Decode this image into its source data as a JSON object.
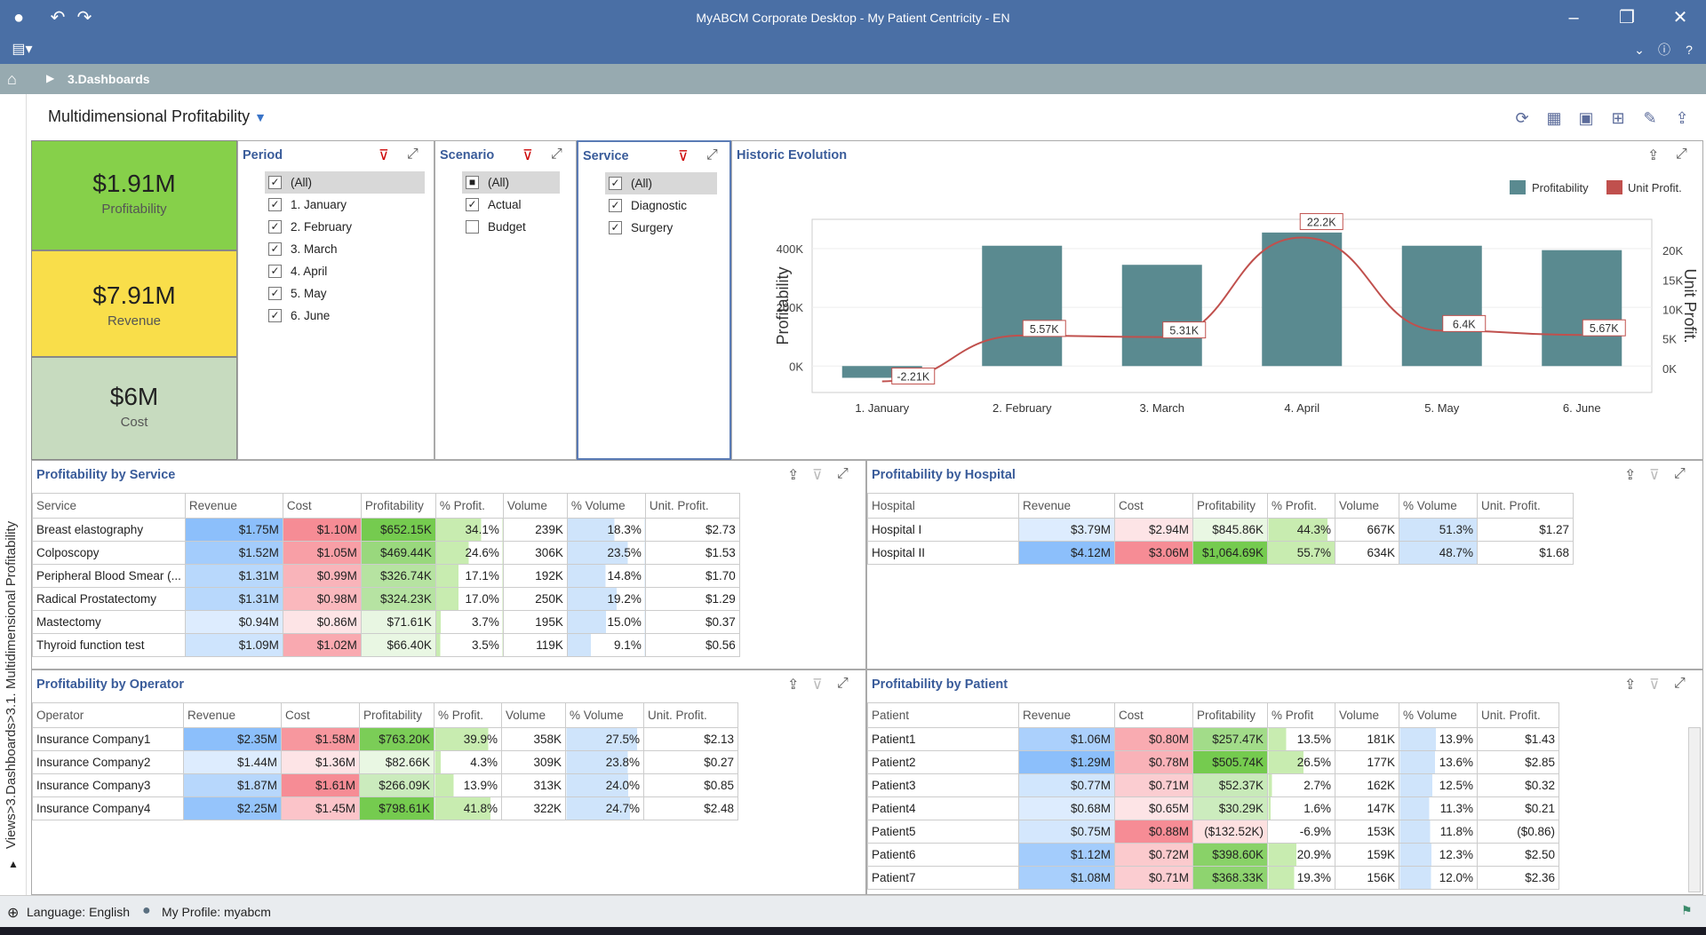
{
  "app": {
    "title": "MyABCM Corporate Desktop - My Patient Centricity - EN"
  },
  "breadcrumb": {
    "item": "3.Dashboards"
  },
  "sidebar": {
    "path": "Views>3.Dashboards>3.1. Multidimensional Profitability"
  },
  "dashboard": {
    "title": "Multidimensional Profitability"
  },
  "cards": [
    {
      "value": "$1.91M",
      "label": "Profitability",
      "color": "#86d04a"
    },
    {
      "value": "$7.91M",
      "label": "Revenue",
      "color": "#f9de4a"
    },
    {
      "value": "$6M",
      "label": "Cost",
      "color": "#c7dbbf"
    }
  ],
  "filters": {
    "period": {
      "title": "Period",
      "items": [
        {
          "label": "(All)",
          "checked": true
        },
        {
          "label": "1. January",
          "checked": true
        },
        {
          "label": "2. February",
          "checked": true
        },
        {
          "label": "3. March",
          "checked": true
        },
        {
          "label": "4. April",
          "checked": true
        },
        {
          "label": "5. May",
          "checked": true
        },
        {
          "label": "6. June",
          "checked": true
        }
      ]
    },
    "scenario": {
      "title": "Scenario",
      "items": [
        {
          "label": "(All)",
          "checked": "partial"
        },
        {
          "label": "Actual",
          "checked": true
        },
        {
          "label": "Budget",
          "checked": false
        }
      ]
    },
    "service": {
      "title": "Service",
      "items": [
        {
          "label": "(All)",
          "checked": true
        },
        {
          "label": "Diagnostic",
          "checked": true
        },
        {
          "label": "Surgery",
          "checked": true
        }
      ]
    }
  },
  "chart_data": {
    "type": "bar",
    "title": "Historic Evolution",
    "categories": [
      "1. January",
      "2. February",
      "3. March",
      "4. April",
      "5. May",
      "6. June"
    ],
    "series": [
      {
        "name": "Profitability",
        "type": "bar",
        "axis": "left",
        "color": "#5a8a90",
        "values": [
          -40000,
          410000,
          345000,
          455000,
          410000,
          395000
        ]
      },
      {
        "name": "Unit Profit.",
        "type": "line",
        "axis": "right",
        "color": "#c0504d",
        "values": [
          -2210,
          5570,
          5310,
          22200,
          6400,
          5670
        ],
        "labels": [
          "-2.21K",
          "5.57K",
          "5.31K",
          "22.2K",
          "6.4K",
          "5.67K"
        ]
      }
    ],
    "ylabel": "Profitability",
    "y2label": "Unit Profit.",
    "yticks": [
      "400K",
      "200K",
      "0K"
    ],
    "y2ticks": [
      "20K",
      "15K",
      "10K",
      "5K",
      "0K"
    ],
    "ylim": [
      -90000,
      500000
    ],
    "y2lim": [
      -4100,
      25300
    ],
    "legend": "top-right"
  },
  "tables": {
    "service": {
      "title": "Profitability by Service",
      "headers": [
        "Service",
        "Revenue",
        "Cost",
        "Profitability",
        "% Profit.",
        "Volume",
        "% Volume",
        "Unit. Profit."
      ],
      "rows": [
        [
          "Breast elastography",
          "$1.75M",
          "$1.10M",
          "$652.15K",
          "34.1%",
          "239K",
          "18.3%",
          "$2.73"
        ],
        [
          "Colposcopy",
          "$1.52M",
          "$1.05M",
          "$469.44K",
          "24.6%",
          "306K",
          "23.5%",
          "$1.53"
        ],
        [
          "Peripheral Blood Smear (...",
          "$1.31M",
          "$0.99M",
          "$326.74K",
          "17.1%",
          "192K",
          "14.8%",
          "$1.70"
        ],
        [
          "Radical Prostatectomy",
          "$1.31M",
          "$0.98M",
          "$324.23K",
          "17.0%",
          "250K",
          "19.2%",
          "$1.29"
        ],
        [
          "Mastectomy",
          "$0.94M",
          "$0.86M",
          "$71.61K",
          "3.7%",
          "195K",
          "15.0%",
          "$0.37"
        ],
        [
          "Thyroid function test",
          "$1.09M",
          "$1.02M",
          "$66.40K",
          "3.5%",
          "119K",
          "9.1%",
          "$0.56"
        ]
      ]
    },
    "hospital": {
      "title": "Profitability by Hospital",
      "headers": [
        "Hospital",
        "Revenue",
        "Cost",
        "Profitability",
        "% Profit.",
        "Volume",
        "% Volume",
        "Unit. Profit."
      ],
      "rows": [
        [
          "Hospital I",
          "$3.79M",
          "$2.94M",
          "$845.86K",
          "44.3%",
          "667K",
          "51.3%",
          "$1.27"
        ],
        [
          "Hospital II",
          "$4.12M",
          "$3.06M",
          "$1,064.69K",
          "55.7%",
          "634K",
          "48.7%",
          "$1.68"
        ]
      ]
    },
    "operator": {
      "title": "Profitability by Operator",
      "headers": [
        "Operator",
        "Revenue",
        "Cost",
        "Profitability",
        "% Profit.",
        "Volume",
        "% Volume",
        "Unit. Profit."
      ],
      "rows": [
        [
          "Insurance Company1",
          "$2.35M",
          "$1.58M",
          "$763.20K",
          "39.9%",
          "358K",
          "27.5%",
          "$2.13"
        ],
        [
          "Insurance Company2",
          "$1.44M",
          "$1.36M",
          "$82.66K",
          "4.3%",
          "309K",
          "23.8%",
          "$0.27"
        ],
        [
          "Insurance Company3",
          "$1.87M",
          "$1.61M",
          "$266.09K",
          "13.9%",
          "313K",
          "24.0%",
          "$0.85"
        ],
        [
          "Insurance Company4",
          "$2.25M",
          "$1.45M",
          "$798.61K",
          "41.8%",
          "322K",
          "24.7%",
          "$2.48"
        ]
      ]
    },
    "patient": {
      "title": "Profitability by Patient",
      "headers": [
        "Patient",
        "Revenue",
        "Cost",
        "Profitability",
        "% Profit",
        "Volume",
        "% Volume",
        "Unit. Profit."
      ],
      "rows": [
        [
          "Patient1",
          "$1.06M",
          "$0.80M",
          "$257.47K",
          "13.5%",
          "181K",
          "13.9%",
          "$1.43"
        ],
        [
          "Patient2",
          "$1.29M",
          "$0.78M",
          "$505.74K",
          "26.5%",
          "177K",
          "13.6%",
          "$2.85"
        ],
        [
          "Patient3",
          "$0.77M",
          "$0.71M",
          "$52.37K",
          "2.7%",
          "162K",
          "12.5%",
          "$0.32"
        ],
        [
          "Patient4",
          "$0.68M",
          "$0.65M",
          "$30.29K",
          "1.6%",
          "147K",
          "11.3%",
          "$0.21"
        ],
        [
          "Patient5",
          "$0.75M",
          "$0.88M",
          "($132.52K)",
          "-6.9%",
          "153K",
          "11.8%",
          "($0.86)"
        ],
        [
          "Patient6",
          "$1.12M",
          "$0.72M",
          "$398.60K",
          "20.9%",
          "159K",
          "12.3%",
          "$2.50"
        ],
        [
          "Patient7",
          "$1.08M",
          "$0.71M",
          "$368.33K",
          "19.3%",
          "156K",
          "12.0%",
          "$2.36"
        ]
      ]
    }
  },
  "status": {
    "language": "Language: English",
    "profile": "My Profile: myabcm"
  }
}
